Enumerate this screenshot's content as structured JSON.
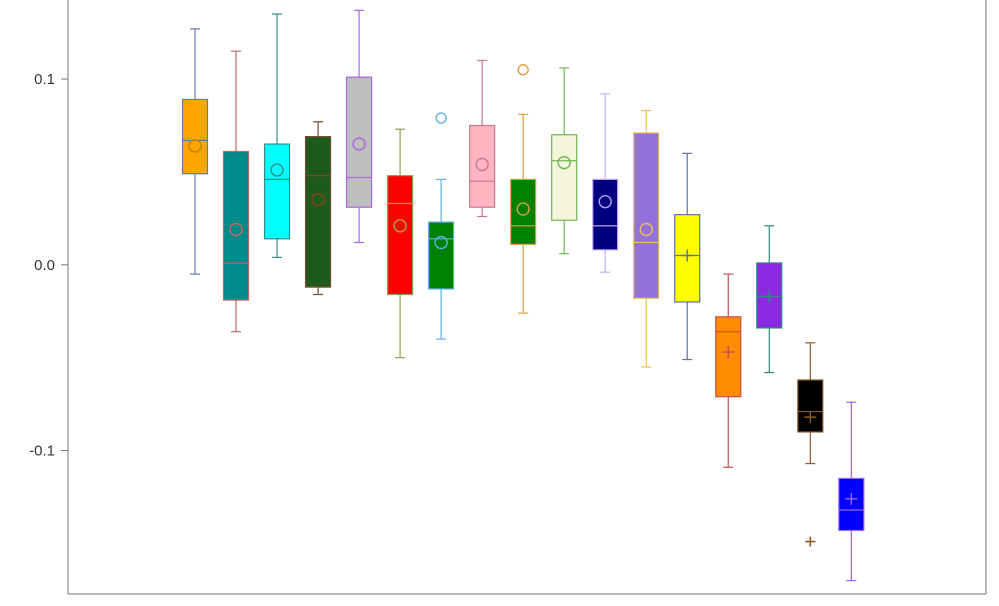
{
  "chart_data": {
    "type": "box",
    "title": "",
    "xlabel": "",
    "ylabel": "",
    "ylim": [
      -0.175,
      0.14
    ],
    "yticks": [
      0.1,
      0.0,
      -0.1
    ],
    "ytick_labels": [
      "0.1",
      "0.0",
      "-0.1"
    ],
    "grid": false,
    "legend": "none",
    "boxes": [
      {
        "fill": "#FFA500",
        "edge": "#6678B0",
        "whisker_low": -0.005,
        "q1": 0.049,
        "median": 0.067,
        "q3": 0.089,
        "whisker_high": 0.127,
        "mean": 0.064,
        "mean_marker": "circle",
        "mean_color": "#B8860B",
        "outliers": []
      },
      {
        "fill": "#008B8B",
        "edge": "#C86464",
        "whisker_low": -0.036,
        "q1": -0.019,
        "median": 0.001,
        "q3": 0.061,
        "whisker_high": 0.115,
        "mean": 0.019,
        "mean_marker": "circle",
        "mean_color": "#C86464",
        "outliers": []
      },
      {
        "fill": "#00FFFF",
        "edge": "#3A8A84",
        "whisker_low": 0.004,
        "q1": 0.014,
        "median": 0.046,
        "q3": 0.065,
        "whisker_high": 0.135,
        "mean": 0.051,
        "mean_marker": "circle",
        "mean_color": "#3A8A84",
        "outliers": []
      },
      {
        "fill": "#1E5A1E",
        "edge": "#7A4A2A",
        "whisker_low": -0.016,
        "q1": -0.012,
        "median": 0.048,
        "q3": 0.069,
        "whisker_high": 0.077,
        "mean": 0.035,
        "mean_marker": "circle",
        "mean_color": "#8B4513",
        "outliers": []
      },
      {
        "fill": "#BEBEBE",
        "edge": "#A868E0",
        "whisker_low": 0.012,
        "q1": 0.031,
        "median": 0.047,
        "q3": 0.101,
        "whisker_high": 0.137,
        "mean": 0.065,
        "mean_marker": "circle",
        "mean_color": "#A868E0",
        "outliers": []
      },
      {
        "fill": "#FF0000",
        "edge": "#9A9A50",
        "whisker_low": -0.05,
        "q1": -0.016,
        "median": 0.033,
        "q3": 0.048,
        "whisker_high": 0.073,
        "mean": 0.021,
        "mean_marker": "circle",
        "mean_color": "#B8A040",
        "outliers": []
      },
      {
        "fill": "#008000",
        "edge": "#60B0E8",
        "whisker_low": -0.04,
        "q1": -0.013,
        "median": 0.014,
        "q3": 0.023,
        "whisker_high": 0.046,
        "mean": 0.012,
        "mean_marker": "circle",
        "mean_color": "#60B0E8",
        "outliers": [
          0.079
        ]
      },
      {
        "fill": "#FFB6C1",
        "edge": "#C87890",
        "whisker_low": 0.026,
        "q1": 0.031,
        "median": 0.045,
        "q3": 0.075,
        "whisker_high": 0.11,
        "mean": 0.054,
        "mean_marker": "circle",
        "mean_color": "#C87890",
        "outliers": []
      },
      {
        "fill": "#008000",
        "edge": "#E0A040",
        "whisker_low": -0.026,
        "q1": 0.011,
        "median": 0.021,
        "q3": 0.046,
        "whisker_high": 0.081,
        "mean": 0.03,
        "mean_marker": "circle",
        "mean_color": "#E0A040",
        "outliers": [
          0.105
        ]
      },
      {
        "fill": "#F5F5DC",
        "edge": "#70B850",
        "whisker_low": 0.006,
        "q1": 0.024,
        "median": 0.056,
        "q3": 0.07,
        "whisker_high": 0.106,
        "mean": 0.055,
        "mean_marker": "circle",
        "mean_color": "#70B850",
        "outliers": []
      },
      {
        "fill": "#000080",
        "edge": "#C8B0F0",
        "whisker_low": -0.004,
        "q1": 0.008,
        "median": 0.021,
        "q3": 0.046,
        "whisker_high": 0.092,
        "mean": 0.034,
        "mean_marker": "circle",
        "mean_color": "#B0A0F0",
        "outliers": []
      },
      {
        "fill": "#9370DB",
        "edge": "#E8C050",
        "whisker_low": -0.055,
        "q1": -0.018,
        "median": 0.012,
        "q3": 0.071,
        "whisker_high": 0.083,
        "mean": 0.019,
        "mean_marker": "circle",
        "mean_color": "#E8C050",
        "outliers": []
      },
      {
        "fill": "#FFFF00",
        "edge": "#6070A8",
        "whisker_low": -0.051,
        "q1": -0.02,
        "median": 0.005,
        "q3": 0.027,
        "whisker_high": 0.06,
        "mean": 0.005,
        "mean_marker": "plus",
        "mean_color": "#6070A8",
        "outliers": []
      },
      {
        "fill": "#FF8C00",
        "edge": "#C05050",
        "whisker_low": -0.109,
        "q1": -0.071,
        "median": -0.036,
        "q3": -0.028,
        "whisker_high": -0.005,
        "mean": -0.047,
        "mean_marker": "plus",
        "mean_color": "#C05050",
        "outliers": []
      },
      {
        "fill": "#8A2BE2",
        "edge": "#2E8B80",
        "whisker_low": -0.058,
        "q1": -0.034,
        "median": -0.017,
        "q3": 0.001,
        "whisker_high": 0.021,
        "mean": -0.017,
        "mean_marker": "plus",
        "mean_color": "#2E8B80",
        "outliers": []
      },
      {
        "fill": "#000000",
        "edge": "#8B5A2B",
        "whisker_low": -0.107,
        "q1": -0.09,
        "median": -0.079,
        "q3": -0.062,
        "whisker_high": -0.042,
        "mean": -0.082,
        "mean_marker": "plus",
        "mean_color": "#8B5A2B",
        "outliers": [
          -0.149
        ]
      },
      {
        "fill": "#0000FF",
        "edge": "#A060E8",
        "whisker_low": -0.17,
        "q1": -0.143,
        "median": -0.132,
        "q3": -0.115,
        "whisker_high": -0.074,
        "mean": -0.126,
        "mean_marker": "plus",
        "mean_color": "#A060E8",
        "outliers": []
      }
    ]
  }
}
